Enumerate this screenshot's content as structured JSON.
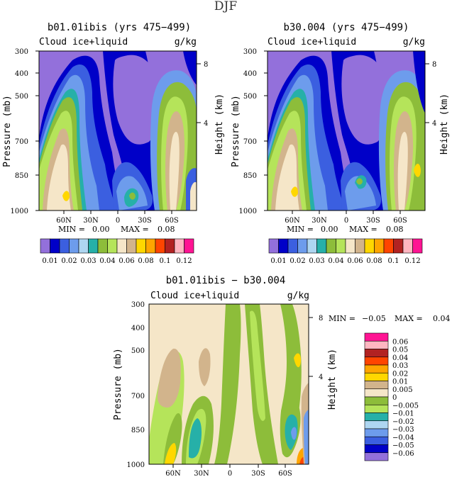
{
  "page_title": "DJF",
  "palette": {
    "purple": "#9370db",
    "navy": "#0000c8",
    "blue": "#3b5fe0",
    "lightblue": "#6d9cec",
    "paleblue": "#aed6f1",
    "teal": "#26b0a8",
    "green": "#8dbd3a",
    "lightgreen": "#b5e45a",
    "tan": "#d2b48c",
    "beige": "#f5e6c8",
    "yellow": "#ffd700",
    "orange": "#ffa500",
    "redorange": "#ff4500",
    "darkred": "#b22222",
    "pink": "#ffb6c1",
    "magenta": "#ff1493"
  },
  "chart_data": [
    {
      "type": "heatmap",
      "panel": "top-left",
      "title": "b01.01ibis (yrs 475−499)",
      "variable": "Cloud ice+liquid",
      "units": "g/kg",
      "ylabel": "Pressure (mb)",
      "ylabel_right": "Height (km)",
      "y_ticks": [
        "300",
        "400",
        "500",
        "700",
        "850",
        "1000"
      ],
      "y_ticks_right": [
        "8",
        "4"
      ],
      "x_ticks": [
        "60N",
        "30N",
        "0",
        "30S",
        "60S"
      ],
      "min_label": "MIN =",
      "min_value": "0.00",
      "max_label": "MAX =",
      "max_value": "0.08"
    },
    {
      "type": "heatmap",
      "panel": "top-right",
      "title": "b30.004 (yrs 475−499)",
      "variable": "Cloud ice+liquid",
      "units": "g/kg",
      "ylabel": "Pressure (mb)",
      "ylabel_right": "Height (km)",
      "y_ticks": [
        "300",
        "400",
        "500",
        "700",
        "850",
        "1000"
      ],
      "y_ticks_right": [
        "8",
        "4"
      ],
      "x_ticks": [
        "60N",
        "30N",
        "0",
        "30S",
        "60S"
      ],
      "min_label": "MIN =",
      "min_value": "0.00",
      "max_label": "MAX =",
      "max_value": "0.08"
    },
    {
      "type": "heatmap",
      "panel": "bottom",
      "title": "b01.01ibis − b30.004",
      "variable": "Cloud ice+liquid",
      "units": "g/kg",
      "ylabel": "Pressure (mb)",
      "ylabel_right": "Height (km)",
      "y_ticks": [
        "300",
        "400",
        "500",
        "700",
        "850",
        "1000"
      ],
      "y_ticks_right": [
        "8",
        "4"
      ],
      "x_ticks": [
        "60N",
        "30N",
        "0",
        "30S",
        "60S"
      ],
      "min_label": "MIN =",
      "min_value": "−0.05",
      "max_label": "MAX =",
      "max_value": "0.04"
    }
  ],
  "top_colorbar": {
    "colors": [
      "#9370db",
      "#0000c8",
      "#3b5fe0",
      "#6d9cec",
      "#aed6f1",
      "#26b0a8",
      "#8dbd3a",
      "#b5e45a",
      "#f5e6c8",
      "#d2b48c",
      "#ffd700",
      "#ffa500",
      "#ff4500",
      "#b22222",
      "#ffb6c1",
      "#ff1493"
    ],
    "labels": [
      "0.01",
      "0.02",
      "0.03",
      "0.04",
      "0.06",
      "0.08",
      "0.1",
      "0.12"
    ]
  },
  "bottom_colorbar": {
    "colors": [
      "#ff1493",
      "#ffb6c1",
      "#b22222",
      "#ff4500",
      "#ffa500",
      "#ffd700",
      "#d2b48c",
      "#f5e6c8",
      "#8dbd3a",
      "#b5e45a",
      "#26b0a8",
      "#aed6f1",
      "#6d9cec",
      "#3b5fe0",
      "#0000c8",
      "#9370db"
    ],
    "labels": [
      "0.06",
      "0.05",
      "0.04",
      "0.03",
      "0.02",
      "0.01",
      "0.005",
      "0",
      "−0.005",
      "−0.01",
      "−0.02",
      "−0.03",
      "−0.04",
      "−0.05",
      "−0.06"
    ]
  }
}
